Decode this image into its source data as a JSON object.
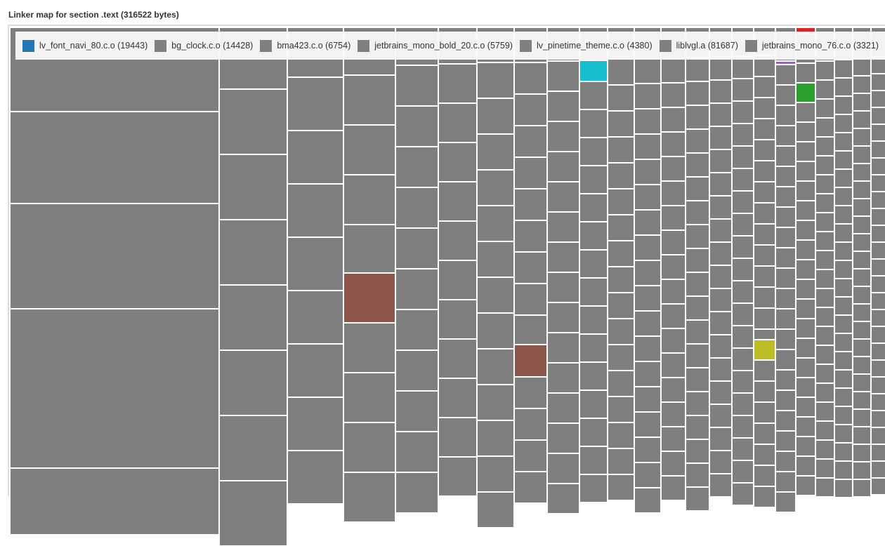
{
  "chart_data": {
    "type": "treemap",
    "title": "Linker map for section .text (316522 bytes)",
    "legend": [
      {
        "label": "lv_font_navi_80.c.o (19443)",
        "color": "#1f77b4"
      },
      {
        "label": "bg_clock.c.o (14428)",
        "color": "#7f7f7f"
      },
      {
        "label": "bma423.c.o (6754)",
        "color": "#7f7f7f"
      },
      {
        "label": "jetbrains_mono_bold_20.c.o (5759)",
        "color": "#7f7f7f"
      },
      {
        "label": "lv_pinetime_theme.c.o (4380)",
        "color": "#7f7f7f"
      },
      {
        "label": "liblvgl.a (81687)",
        "color": "#7f7f7f"
      },
      {
        "label": "jetbrains_mono_76.c.o (3321)",
        "color": "#7f7f7f"
      }
    ],
    "default_color": "#7f7f7f",
    "highlight_colors": [
      "#d62728",
      "#9467bd",
      "#17becf",
      "#8c564b",
      "#bcbd22",
      "#2ca02c"
    ]
  }
}
